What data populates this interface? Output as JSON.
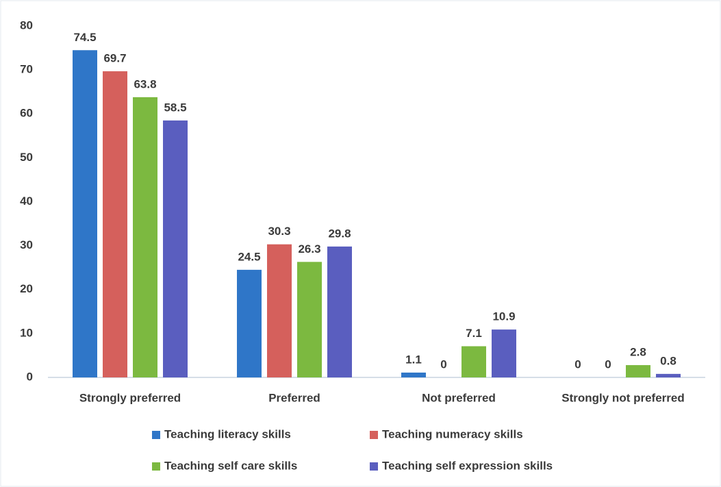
{
  "chart_data": {
    "type": "bar",
    "categories": [
      "Strongly preferred",
      "Preferred",
      "Not preferred",
      "Strongly not preferred"
    ],
    "series": [
      {
        "name": "Teaching literacy skills",
        "color": "#2f76c8",
        "values": [
          74.5,
          24.5,
          1.1,
          0
        ]
      },
      {
        "name": "Teaching numeracy skills",
        "color": "#d5605c",
        "values": [
          69.7,
          30.3,
          0,
          0
        ]
      },
      {
        "name": "Teaching self care skills",
        "color": "#7cb940",
        "values": [
          63.8,
          26.3,
          7.1,
          2.8
        ]
      },
      {
        "name": "Teaching self expression skills",
        "color": "#5a5ebf",
        "values": [
          58.5,
          29.8,
          10.9,
          0.8
        ]
      }
    ],
    "ylim": [
      0,
      80
    ],
    "yticks": [
      0,
      10,
      20,
      30,
      40,
      50,
      60,
      70,
      80
    ],
    "grid": false,
    "legend": "bottom"
  }
}
